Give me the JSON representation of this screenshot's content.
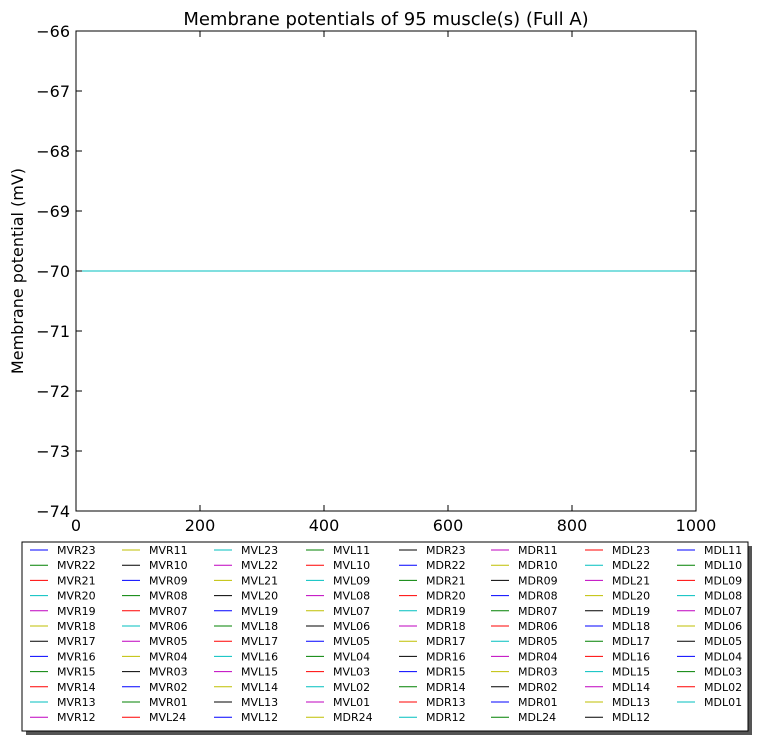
{
  "chart_data": {
    "type": "line",
    "title": "Membrane potentials of 95 muscle(s) (Full A)",
    "xlabel": "",
    "ylabel": "Membrane potential (mV)",
    "xlim": [
      0,
      1000
    ],
    "ylim": [
      -74,
      -66
    ],
    "xticks": [
      0,
      200,
      400,
      600,
      800,
      1000
    ],
    "xtick_labels": [
      "0",
      "200",
      "400",
      "600",
      "800",
      "1000"
    ],
    "yticks": [
      -66,
      -67,
      -68,
      -69,
      -70,
      -71,
      -72,
      -73,
      -74
    ],
    "ytick_labels": [
      "−66",
      "−67",
      "−68",
      "−69",
      "−70",
      "−71",
      "−72",
      "−73",
      "−74"
    ],
    "grid": false,
    "legend_position": "below plot",
    "constant_value": -70,
    "x": [
      0,
      1000
    ],
    "color_cycle": [
      "#0000ff",
      "#008000",
      "#ff0000",
      "#00bfbf",
      "#bf00bf",
      "#bfbf00",
      "#000000"
    ],
    "series": [
      {
        "name": "MVR23",
        "values": [
          -70,
          -70
        ]
      },
      {
        "name": "MVR22",
        "values": [
          -70,
          -70
        ]
      },
      {
        "name": "MVR21",
        "values": [
          -70,
          -70
        ]
      },
      {
        "name": "MVR20",
        "values": [
          -70,
          -70
        ]
      },
      {
        "name": "MVR19",
        "values": [
          -70,
          -70
        ]
      },
      {
        "name": "MVR18",
        "values": [
          -70,
          -70
        ]
      },
      {
        "name": "MVR17",
        "values": [
          -70,
          -70
        ]
      },
      {
        "name": "MVR16",
        "values": [
          -70,
          -70
        ]
      },
      {
        "name": "MVR15",
        "values": [
          -70,
          -70
        ]
      },
      {
        "name": "MVR14",
        "values": [
          -70,
          -70
        ]
      },
      {
        "name": "MVR13",
        "values": [
          -70,
          -70
        ]
      },
      {
        "name": "MVR12",
        "values": [
          -70,
          -70
        ]
      },
      {
        "name": "MVR11",
        "values": [
          -70,
          -70
        ]
      },
      {
        "name": "MVR10",
        "values": [
          -70,
          -70
        ]
      },
      {
        "name": "MVR09",
        "values": [
          -70,
          -70
        ]
      },
      {
        "name": "MVR08",
        "values": [
          -70,
          -70
        ]
      },
      {
        "name": "MVR07",
        "values": [
          -70,
          -70
        ]
      },
      {
        "name": "MVR06",
        "values": [
          -70,
          -70
        ]
      },
      {
        "name": "MVR05",
        "values": [
          -70,
          -70
        ]
      },
      {
        "name": "MVR04",
        "values": [
          -70,
          -70
        ]
      },
      {
        "name": "MVR03",
        "values": [
          -70,
          -70
        ]
      },
      {
        "name": "MVR02",
        "values": [
          -70,
          -70
        ]
      },
      {
        "name": "MVR01",
        "values": [
          -70,
          -70
        ]
      },
      {
        "name": "MVL24",
        "values": [
          -70,
          -70
        ]
      },
      {
        "name": "MVL23",
        "values": [
          -70,
          -70
        ]
      },
      {
        "name": "MVL22",
        "values": [
          -70,
          -70
        ]
      },
      {
        "name": "MVL21",
        "values": [
          -70,
          -70
        ]
      },
      {
        "name": "MVL20",
        "values": [
          -70,
          -70
        ]
      },
      {
        "name": "MVL19",
        "values": [
          -70,
          -70
        ]
      },
      {
        "name": "MVL18",
        "values": [
          -70,
          -70
        ]
      },
      {
        "name": "MVL17",
        "values": [
          -70,
          -70
        ]
      },
      {
        "name": "MVL16",
        "values": [
          -70,
          -70
        ]
      },
      {
        "name": "MVL15",
        "values": [
          -70,
          -70
        ]
      },
      {
        "name": "MVL14",
        "values": [
          -70,
          -70
        ]
      },
      {
        "name": "MVL13",
        "values": [
          -70,
          -70
        ]
      },
      {
        "name": "MVL12",
        "values": [
          -70,
          -70
        ]
      },
      {
        "name": "MVL11",
        "values": [
          -70,
          -70
        ]
      },
      {
        "name": "MVL10",
        "values": [
          -70,
          -70
        ]
      },
      {
        "name": "MVL09",
        "values": [
          -70,
          -70
        ]
      },
      {
        "name": "MVL08",
        "values": [
          -70,
          -70
        ]
      },
      {
        "name": "MVL07",
        "values": [
          -70,
          -70
        ]
      },
      {
        "name": "MVL06",
        "values": [
          -70,
          -70
        ]
      },
      {
        "name": "MVL05",
        "values": [
          -70,
          -70
        ]
      },
      {
        "name": "MVL04",
        "values": [
          -70,
          -70
        ]
      },
      {
        "name": "MVL03",
        "values": [
          -70,
          -70
        ]
      },
      {
        "name": "MVL02",
        "values": [
          -70,
          -70
        ]
      },
      {
        "name": "MVL01",
        "values": [
          -70,
          -70
        ]
      },
      {
        "name": "MDR24",
        "values": [
          -70,
          -70
        ]
      },
      {
        "name": "MDR23",
        "values": [
          -70,
          -70
        ]
      },
      {
        "name": "MDR22",
        "values": [
          -70,
          -70
        ]
      },
      {
        "name": "MDR21",
        "values": [
          -70,
          -70
        ]
      },
      {
        "name": "MDR20",
        "values": [
          -70,
          -70
        ]
      },
      {
        "name": "MDR19",
        "values": [
          -70,
          -70
        ]
      },
      {
        "name": "MDR18",
        "values": [
          -70,
          -70
        ]
      },
      {
        "name": "MDR17",
        "values": [
          -70,
          -70
        ]
      },
      {
        "name": "MDR16",
        "values": [
          -70,
          -70
        ]
      },
      {
        "name": "MDR15",
        "values": [
          -70,
          -70
        ]
      },
      {
        "name": "MDR14",
        "values": [
          -70,
          -70
        ]
      },
      {
        "name": "MDR13",
        "values": [
          -70,
          -70
        ]
      },
      {
        "name": "MDR12",
        "values": [
          -70,
          -70
        ]
      },
      {
        "name": "MDR11",
        "values": [
          -70,
          -70
        ]
      },
      {
        "name": "MDR10",
        "values": [
          -70,
          -70
        ]
      },
      {
        "name": "MDR09",
        "values": [
          -70,
          -70
        ]
      },
      {
        "name": "MDR08",
        "values": [
          -70,
          -70
        ]
      },
      {
        "name": "MDR07",
        "values": [
          -70,
          -70
        ]
      },
      {
        "name": "MDR06",
        "values": [
          -70,
          -70
        ]
      },
      {
        "name": "MDR05",
        "values": [
          -70,
          -70
        ]
      },
      {
        "name": "MDR04",
        "values": [
          -70,
          -70
        ]
      },
      {
        "name": "MDR03",
        "values": [
          -70,
          -70
        ]
      },
      {
        "name": "MDR02",
        "values": [
          -70,
          -70
        ]
      },
      {
        "name": "MDR01",
        "values": [
          -70,
          -70
        ]
      },
      {
        "name": "MDL24",
        "values": [
          -70,
          -70
        ]
      },
      {
        "name": "MDL23",
        "values": [
          -70,
          -70
        ]
      },
      {
        "name": "MDL22",
        "values": [
          -70,
          -70
        ]
      },
      {
        "name": "MDL21",
        "values": [
          -70,
          -70
        ]
      },
      {
        "name": "MDL20",
        "values": [
          -70,
          -70
        ]
      },
      {
        "name": "MDL19",
        "values": [
          -70,
          -70
        ]
      },
      {
        "name": "MDL18",
        "values": [
          -70,
          -70
        ]
      },
      {
        "name": "MDL17",
        "values": [
          -70,
          -70
        ]
      },
      {
        "name": "MDL16",
        "values": [
          -70,
          -70
        ]
      },
      {
        "name": "MDL15",
        "values": [
          -70,
          -70
        ]
      },
      {
        "name": "MDL14",
        "values": [
          -70,
          -70
        ]
      },
      {
        "name": "MDL13",
        "values": [
          -70,
          -70
        ]
      },
      {
        "name": "MDL12",
        "values": [
          -70,
          -70
        ]
      },
      {
        "name": "MDL11",
        "values": [
          -70,
          -70
        ]
      },
      {
        "name": "MDL10",
        "values": [
          -70,
          -70
        ]
      },
      {
        "name": "MDL09",
        "values": [
          -70,
          -70
        ]
      },
      {
        "name": "MDL08",
        "values": [
          -70,
          -70
        ]
      },
      {
        "name": "MDL07",
        "values": [
          -70,
          -70
        ]
      },
      {
        "name": "MDL06",
        "values": [
          -70,
          -70
        ]
      },
      {
        "name": "MDL05",
        "values": [
          -70,
          -70
        ]
      },
      {
        "name": "MDL04",
        "values": [
          -70,
          -70
        ]
      },
      {
        "name": "MDL03",
        "values": [
          -70,
          -70
        ]
      },
      {
        "name": "MDL02",
        "values": [
          -70,
          -70
        ]
      },
      {
        "name": "MDL01",
        "values": [
          -70,
          -70
        ]
      }
    ]
  }
}
